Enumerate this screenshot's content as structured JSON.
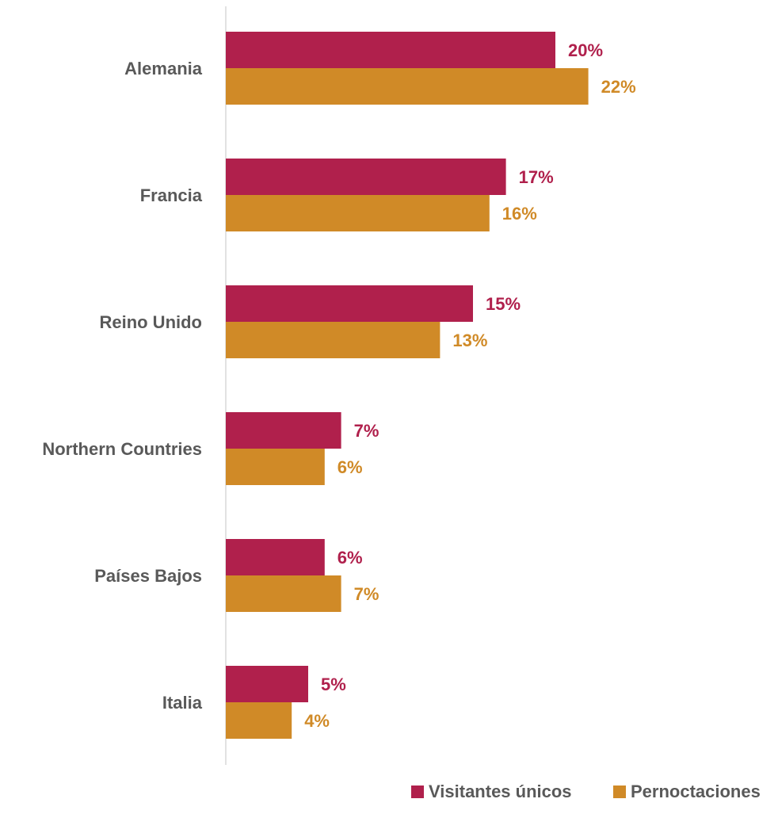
{
  "chart_data": {
    "type": "bar",
    "orientation": "horizontal",
    "title": "",
    "xlabel": "",
    "ylabel": "",
    "categories": [
      "Alemania",
      "Francia",
      "Reino Unido",
      "Northern Countries",
      "Países Bajos",
      "Italia"
    ],
    "series": [
      {
        "name": "Visitantes únicos",
        "color": "#B0204C",
        "values": [
          20,
          17,
          15,
          7,
          6,
          5
        ],
        "labels": [
          "20%",
          "17%",
          "15%",
          "7%",
          "6%",
          "5%"
        ]
      },
      {
        "name": "Pernoctaciones",
        "color": "#D08A27",
        "values": [
          22,
          16,
          13,
          6,
          7,
          4
        ],
        "labels": [
          "22%",
          "16%",
          "13%",
          "6%",
          "7%",
          "4%"
        ]
      }
    ],
    "xlim": [
      0,
      37
    ],
    "grid": false,
    "legend_position": "bottom-right",
    "axis_line_color": "#D9D9D9",
    "category_label_color": "#595959"
  }
}
